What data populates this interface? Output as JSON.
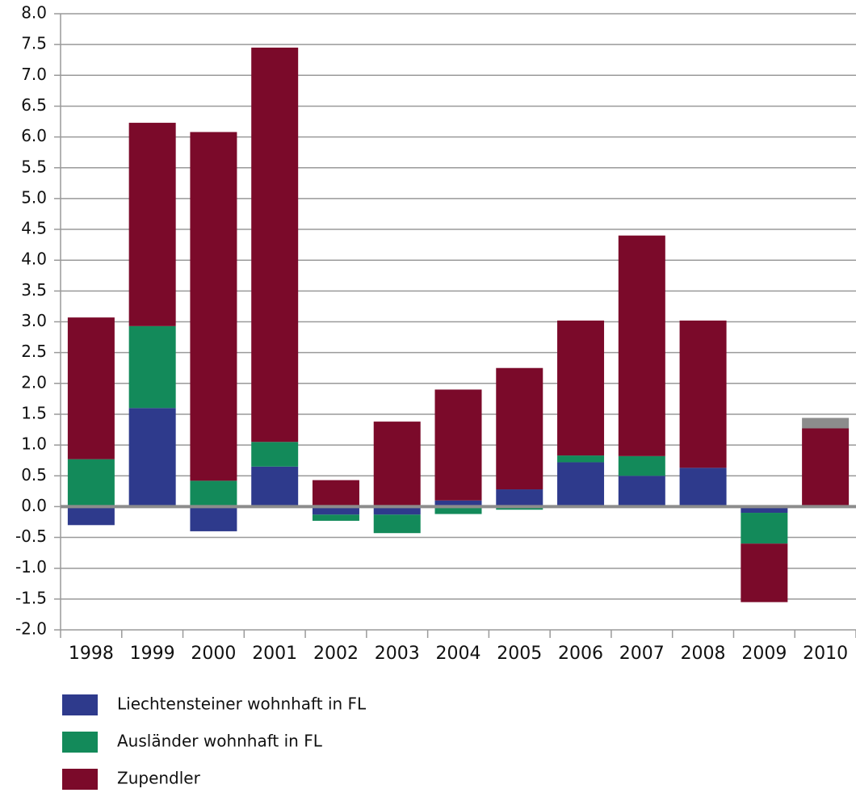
{
  "chart_data": {
    "type": "stacked_bar",
    "categories": [
      "1998",
      "1999",
      "2000",
      "2001",
      "2002",
      "2003",
      "2004",
      "2005",
      "2006",
      "2007",
      "2008",
      "2009",
      "2010"
    ],
    "series": [
      {
        "name": "Liechtensteiner wohnhaft in FL",
        "color": "#2e3a8c",
        "values": [
          -0.3,
          1.6,
          -0.4,
          0.65,
          -0.13,
          -0.13,
          0.1,
          0.28,
          0.72,
          0.5,
          0.63,
          -0.1,
          null
        ]
      },
      {
        "name": "Ausländer wohnhaft in FL",
        "color": "#138a5a",
        "values": [
          0.77,
          1.33,
          0.42,
          0.4,
          -0.1,
          -0.3,
          -0.12,
          -0.05,
          0.11,
          0.32,
          null,
          -0.5,
          null
        ]
      },
      {
        "name": "Zupendler",
        "color": "#7b0a2a",
        "values": [
          2.3,
          3.3,
          5.66,
          6.4,
          0.43,
          1.38,
          1.8,
          1.97,
          2.19,
          3.58,
          2.39,
          -0.95,
          1.27
        ]
      },
      {
        "color": "#8c8c8c",
        "values": [
          null,
          null,
          null,
          null,
          null,
          null,
          null,
          null,
          null,
          null,
          null,
          null,
          0.17
        ]
      }
    ],
    "ylim": [
      -2,
      8
    ],
    "yticks": [
      {
        "value": -2,
        "label": "-2.0"
      },
      {
        "value": -1.5,
        "label": "-1.5"
      },
      {
        "value": -1,
        "label": "-1.0"
      },
      {
        "value": -0.5,
        "label": "-0.5"
      },
      {
        "value": 0,
        "label": "0.0"
      },
      {
        "value": 0.5,
        "label": "0.5"
      },
      {
        "value": 1,
        "label": "1.0"
      },
      {
        "value": 1.5,
        "label": "1.5"
      },
      {
        "value": 2,
        "label": "2.0"
      },
      {
        "value": 2.5,
        "label": "2.5"
      },
      {
        "value": 3,
        "label": "3.0"
      },
      {
        "value": 3.5,
        "label": "3.5"
      },
      {
        "value": 4,
        "label": "4.0"
      },
      {
        "value": 4.5,
        "label": "4.5"
      },
      {
        "value": 5,
        "label": "5.0"
      },
      {
        "value": 5.5,
        "label": "5.5"
      },
      {
        "value": 6,
        "label": "6.0"
      },
      {
        "value": 6.5,
        "label": "6.5"
      },
      {
        "value": 7,
        "label": "7.0"
      },
      {
        "value": 7.5,
        "label": "7.5"
      },
      {
        "value": 8,
        "label": "8.0"
      }
    ],
    "grid": true
  }
}
